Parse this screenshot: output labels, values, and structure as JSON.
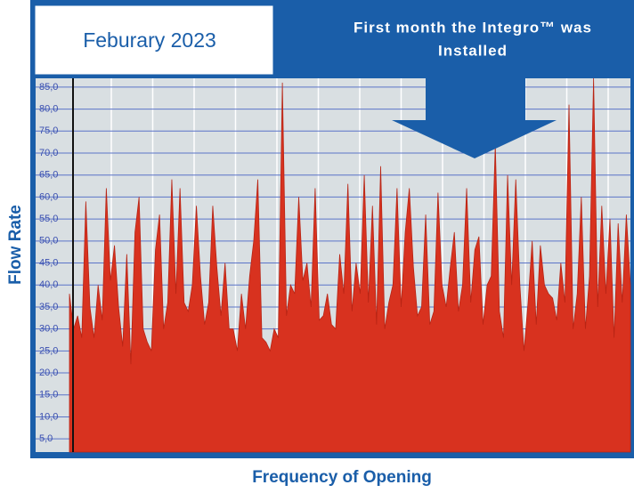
{
  "chart_data": {
    "type": "area",
    "title": "Feburary 2023",
    "annotation": [
      "First month the Integro™ was",
      "Installed"
    ],
    "x_label": "Frequency of Opening",
    "y_label": "Flow Rate",
    "color": "#d8321f",
    "grid": true,
    "ylim": [
      2,
      87
    ],
    "yticks": [
      {
        "value": 5,
        "label": "5,0"
      },
      {
        "value": 10,
        "label": "10,0"
      },
      {
        "value": 15,
        "label": "15,0"
      },
      {
        "value": 20,
        "label": "20,0"
      },
      {
        "value": 25,
        "label": "25,0"
      },
      {
        "value": 30,
        "label": "30,0"
      },
      {
        "value": 35,
        "label": "35,0"
      },
      {
        "value": 40,
        "label": "40,0"
      },
      {
        "value": 45,
        "label": "45,0"
      },
      {
        "value": 50,
        "label": "50,0"
      },
      {
        "value": 55,
        "label": "55,0"
      },
      {
        "value": 60,
        "label": "60,0"
      },
      {
        "value": 65,
        "label": "65,0"
      },
      {
        "value": 70,
        "label": "70,0"
      },
      {
        "value": 75,
        "label": "75,0"
      },
      {
        "value": 80,
        "label": "80,0"
      },
      {
        "value": 85,
        "label": "85,0"
      }
    ],
    "values": [
      38,
      30,
      33,
      28,
      59,
      35,
      28,
      40,
      32,
      62,
      41,
      49,
      35,
      26,
      47,
      22,
      52,
      60,
      30,
      27,
      25,
      48,
      56,
      30,
      36,
      64,
      38,
      62,
      36,
      34,
      40,
      58,
      42,
      31,
      36,
      58,
      44,
      33,
      45,
      30,
      30,
      25,
      38,
      30,
      42,
      50,
      64,
      28,
      27,
      25,
      30,
      28,
      86,
      33,
      40,
      38,
      60,
      41,
      45,
      35,
      62,
      32,
      33,
      38,
      31,
      30,
      47,
      38,
      63,
      34,
      45,
      38,
      65,
      36,
      58,
      31,
      67,
      30,
      36,
      40,
      62,
      35,
      52,
      62,
      44,
      33,
      35,
      56,
      31,
      34,
      61,
      40,
      35,
      44,
      52,
      34,
      40,
      62,
      36,
      48,
      51,
      31,
      40,
      42,
      72,
      34,
      28,
      65,
      40,
      64,
      40,
      25,
      36,
      50,
      31,
      49,
      40,
      38,
      37,
      32,
      45,
      36,
      81,
      30,
      38,
      60,
      30,
      42,
      87,
      35,
      58,
      38,
      55,
      28,
      54,
      36,
      56,
      40
    ]
  }
}
